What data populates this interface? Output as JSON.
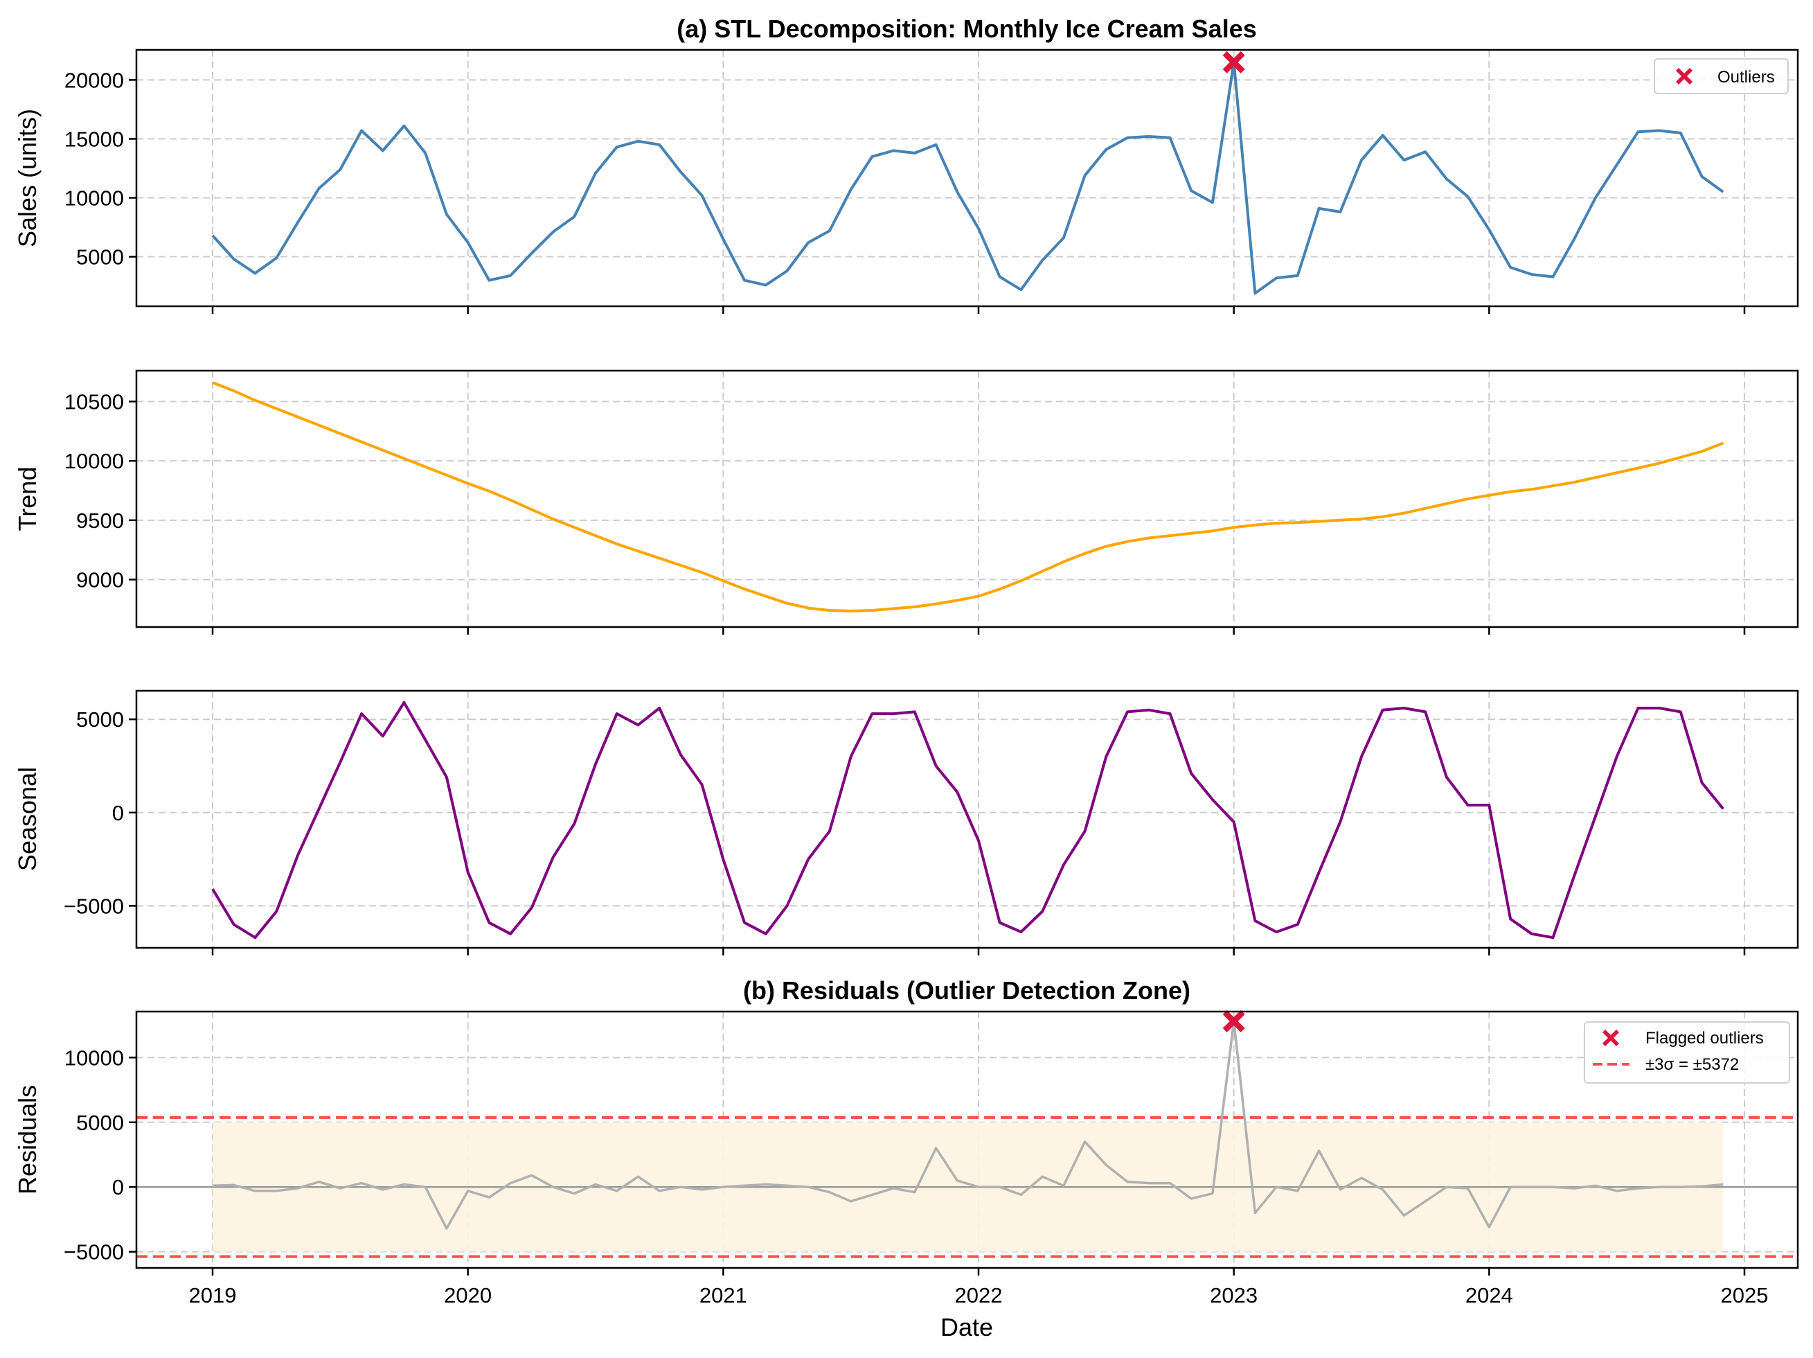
{
  "chart_data": {
    "type": "line",
    "figure": "STL decomposition with outlier detection",
    "x": {
      "start": "2019-01",
      "frequency": "monthly",
      "count": 72,
      "xlabel": "Date",
      "ticks": [
        "2019",
        "2020",
        "2021",
        "2022",
        "2023",
        "2024",
        "2025"
      ],
      "xlim": [
        "2018-09",
        "2025-03"
      ]
    },
    "panels": [
      {
        "id": "sales",
        "title": "(a) STL Decomposition: Monthly Ice Cream Sales",
        "ylabel": "Sales (units)",
        "ylim": [
          800,
          22550
        ],
        "yticks": [
          5000,
          10000,
          15000,
          20000
        ],
        "grid": true,
        "color": "#4682b4",
        "legend": {
          "placement": "top-right",
          "entries": [
            {
              "label": "Outliers",
              "marker": "x-filled",
              "color": "#dc143c"
            }
          ]
        },
        "series": [
          {
            "name": "Sales",
            "values": [
              6800,
              4800,
              3600,
              4900,
              7900,
              10800,
              12400,
              15700,
              14000,
              16100,
              13800,
              8600,
              6200,
              3000,
              3400,
              5300,
              7100,
              8400,
              12100,
              14300,
              14800,
              14500,
              12200,
              10200,
              6500,
              3000,
              2600,
              3800,
              6200,
              7200,
              10700,
              13500,
              14000,
              13800,
              14500,
              10500,
              7400,
              3300,
              2200,
              4700,
              6600,
              11900,
              14100,
              15100,
              15200,
              15100,
              10600,
              9600,
              21500,
              1900,
              3200,
              3400,
              9100,
              8800,
              13200,
              15300,
              13200,
              13900,
              11600,
              10100,
              7300,
              4100,
              3500,
              3300,
              6500,
              10000,
              12800,
              15600,
              15700,
              15500,
              11800,
              10500
            ]
          }
        ],
        "outliers": [
          {
            "date": "2023-01",
            "value": 21500
          }
        ]
      },
      {
        "id": "trend",
        "title": "",
        "ylabel": "Trend",
        "ylim": [
          8600,
          10760
        ],
        "yticks": [
          9000,
          9500,
          10000,
          10500
        ],
        "grid": true,
        "color": "#ffa500",
        "series": [
          {
            "name": "Trend",
            "values": [
              10660,
              10590,
              10510,
              10440,
              10370,
              10300,
              10230,
              10160,
              10090,
              10020,
              9950,
              9880,
              9810,
              9745,
              9670,
              9590,
              9510,
              9440,
              9370,
              9300,
              9240,
              9180,
              9120,
              9060,
              8990,
              8920,
              8860,
              8800,
              8760,
              8740,
              8735,
              8740,
              8755,
              8770,
              8795,
              8825,
              8860,
              8920,
              8990,
              9070,
              9150,
              9220,
              9280,
              9320,
              9350,
              9370,
              9390,
              9410,
              9440,
              9460,
              9475,
              9480,
              9490,
              9500,
              9510,
              9530,
              9560,
              9600,
              9640,
              9680,
              9710,
              9740,
              9760,
              9790,
              9820,
              9860,
              9900,
              9940,
              9980,
              10030,
              10080,
              10150
            ]
          }
        ]
      },
      {
        "id": "seasonal",
        "title": "",
        "ylabel": "Seasonal",
        "ylim": [
          -7250,
          6530
        ],
        "yticks": [
          -5000,
          0,
          5000
        ],
        "grid": true,
        "color": "#800080",
        "series": [
          {
            "name": "Seasonal",
            "values": [
              -4100,
              -6000,
              -6700,
              -5300,
              -2300,
              200,
              2700,
              5300,
              4100,
              5900,
              3900,
              1900,
              -3200,
              -5900,
              -6500,
              -5100,
              -2400,
              -600,
              2600,
              5300,
              4700,
              5600,
              3100,
              1500,
              -2500,
              -5900,
              -6500,
              -5000,
              -2500,
              -1000,
              3000,
              5300,
              5300,
              5400,
              2500,
              1100,
              -1500,
              -5900,
              -6400,
              -5300,
              -2800,
              -1000,
              3000,
              5400,
              5500,
              5300,
              2100,
              700,
              -500,
              -5800,
              -6400,
              -6000,
              -3200,
              -500,
              3000,
              5500,
              5600,
              5400,
              1900,
              400,
              400,
              -5700,
              -6500,
              -6700,
              -3400,
              -200,
              3000,
              5600,
              5600,
              5400,
              1600,
              200
            ]
          }
        ]
      },
      {
        "id": "residuals",
        "title": "(b) Residuals (Outlier Detection Zone)",
        "ylabel": "Residuals",
        "ylim": [
          -6250,
          13550
        ],
        "yticks": [
          -5000,
          0,
          5000,
          10000
        ],
        "grid": true,
        "color": "#b0b0b0",
        "threshold": 5372,
        "shaded_band": [
          -5000,
          5000
        ],
        "shaded_color": "#fdf3e1",
        "legend": {
          "placement": "top-right",
          "entries": [
            {
              "label": "Flagged outliers",
              "marker": "x-filled",
              "color": "#dc143c"
            },
            {
              "label": "±3σ = ±5372",
              "line": "dashed",
              "color": "#ff4d4d"
            }
          ]
        },
        "series": [
          {
            "name": "Residuals",
            "values": [
              100,
              150,
              -300,
              -300,
              -100,
              400,
              -100,
              300,
              -200,
              200,
              0,
              -3200,
              -300,
              -800,
              300,
              900,
              0,
              -500,
              200,
              -300,
              800,
              -300,
              0,
              -200,
              0,
              100,
              200,
              100,
              0,
              -400,
              -1100,
              -600,
              -100,
              -400,
              3000,
              500,
              0,
              0,
              -600,
              800,
              100,
              3500,
              1700,
              400,
              300,
              300,
              -900,
              -500,
              12800,
              -2000,
              0,
              -300,
              2800,
              -200,
              700,
              -200,
              -2200,
              -1100,
              0,
              -100,
              -3100,
              0,
              0,
              0,
              -100,
              100,
              -300,
              -100,
              0,
              0,
              50,
              200
            ]
          }
        ],
        "outliers": [
          {
            "date": "2023-01",
            "value": 12800
          }
        ]
      }
    ]
  }
}
